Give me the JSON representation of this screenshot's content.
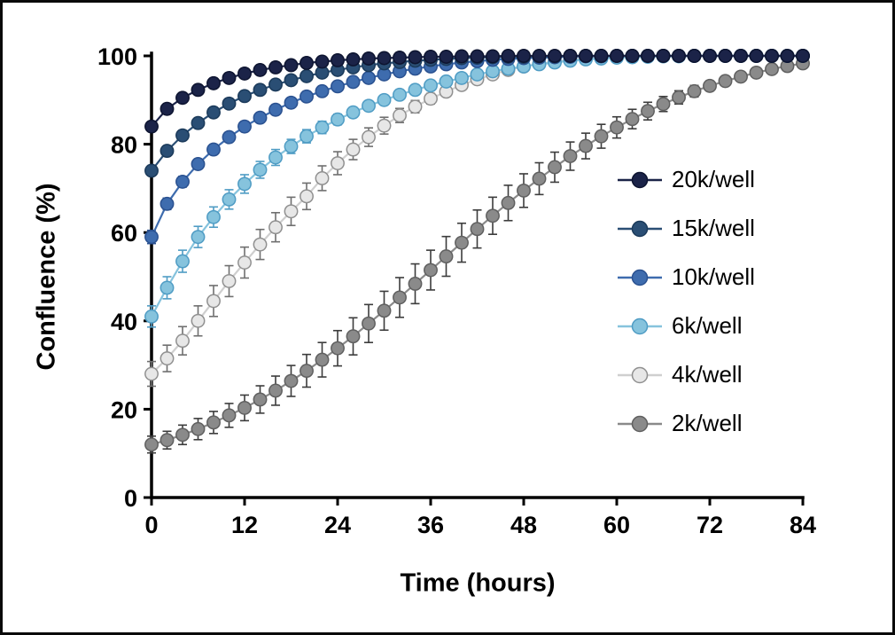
{
  "figure": {
    "background": "#ffffff",
    "border_color": "#0a0a0a"
  },
  "chart_data": {
    "type": "line",
    "title": "",
    "xlabel": "Time (hours)",
    "ylabel": "Confluence (%)",
    "xlim": [
      0,
      84
    ],
    "ylim": [
      0,
      100
    ],
    "x_ticks": [
      0,
      12,
      24,
      36,
      48,
      60,
      72,
      84
    ],
    "y_ticks": [
      0,
      20,
      40,
      60,
      80,
      100
    ],
    "grid": false,
    "legend_position": "inside-right",
    "marker_shape": "circle",
    "x_step_hours": 2,
    "x": [
      0,
      2,
      4,
      6,
      8,
      10,
      12,
      14,
      16,
      18,
      20,
      22,
      24,
      26,
      28,
      30,
      32,
      34,
      36,
      38,
      40,
      42,
      44,
      46,
      48,
      50,
      52,
      54,
      56,
      58,
      60,
      62,
      64,
      66,
      68,
      70,
      72,
      74,
      76,
      78,
      80,
      82,
      84
    ],
    "series": [
      {
        "name": "20k/well",
        "color": "#1b2348",
        "marker_fill": "#1b2348",
        "marker_edge": "#0d1430",
        "error_color": "#0d1430",
        "values": [
          84,
          88,
          90.5,
          92.3,
          93.8,
          95,
          96,
          96.8,
          97.4,
          97.9,
          98.4,
          98.7,
          99,
          99.2,
          99.4,
          99.5,
          99.6,
          99.7,
          99.8,
          99.8,
          99.9,
          99.9,
          99.9,
          100,
          100,
          100,
          100,
          100,
          100,
          100,
          100,
          100,
          100,
          100,
          100,
          100,
          100,
          100,
          100,
          100,
          100,
          100,
          100
        ],
        "errors": [
          0.4,
          0.3,
          0.3,
          0.2,
          0.2,
          0.2,
          0.1,
          0.1,
          0.1,
          0.1,
          0.1,
          0,
          0,
          0,
          0,
          0,
          0,
          0,
          0,
          0,
          0,
          0,
          0,
          0,
          0,
          0,
          0,
          0,
          0,
          0,
          0,
          0,
          0,
          0,
          0,
          0,
          0,
          0,
          0,
          0,
          0,
          0,
          0
        ]
      },
      {
        "name": "15k/well",
        "color": "#2a4e74",
        "marker_fill": "#2a4e74",
        "marker_edge": "#1b3a5a",
        "error_color": "#1b3a5a",
        "values": [
          74,
          78.5,
          82,
          84.8,
          87.2,
          89.2,
          90.9,
          92.3,
          93.5,
          94.5,
          95.4,
          96.2,
          96.8,
          97.4,
          97.9,
          98.3,
          98.6,
          98.9,
          99.1,
          99.3,
          99.5,
          99.6,
          99.7,
          99.8,
          99.8,
          99.9,
          99.9,
          100,
          100,
          100,
          100,
          100,
          100,
          100,
          100,
          100,
          100,
          100,
          100,
          100,
          100,
          100,
          100
        ],
        "errors": [
          0.9,
          0.8,
          0.7,
          0.6,
          0.5,
          0.5,
          0.4,
          0.3,
          0.3,
          0.2,
          0.2,
          0.2,
          0.1,
          0.1,
          0.1,
          0.1,
          0.1,
          0.1,
          0,
          0,
          0,
          0,
          0,
          0,
          0,
          0,
          0,
          0,
          0,
          0,
          0,
          0,
          0,
          0,
          0,
          0,
          0,
          0,
          0,
          0,
          0,
          0,
          0
        ]
      },
      {
        "name": "10k/well",
        "color": "#3e6cae",
        "marker_fill": "#3e6cae",
        "marker_edge": "#2a5190",
        "error_color": "#2a5190",
        "values": [
          59,
          66.5,
          71.5,
          75.5,
          78.8,
          81.6,
          84,
          86,
          87.8,
          89.4,
          90.8,
          92,
          93.1,
          94.1,
          95,
          95.8,
          96.5,
          97.1,
          97.6,
          98.1,
          98.5,
          98.8,
          99.1,
          99.3,
          99.5,
          99.6,
          99.7,
          99.8,
          99.9,
          99.9,
          100,
          100,
          100,
          100,
          100,
          100,
          100,
          100,
          100,
          100,
          100,
          100,
          100
        ],
        "errors": [
          1.5,
          1.3,
          1.2,
          1.1,
          1.0,
          0.9,
          0.8,
          0.7,
          0.6,
          0.6,
          0.5,
          0.4,
          0.4,
          0.3,
          0.3,
          0.2,
          0.2,
          0.2,
          0.1,
          0.1,
          0.1,
          0.1,
          0.1,
          0,
          0,
          0,
          0,
          0,
          0,
          0,
          0,
          0,
          0,
          0,
          0,
          0,
          0,
          0,
          0,
          0,
          0,
          0,
          0
        ]
      },
      {
        "name": "6k/well",
        "color": "#86c3dd",
        "marker_fill": "#86c3dd",
        "marker_edge": "#4f9cc4",
        "error_color": "#4f9cc4",
        "values": [
          41,
          47.5,
          53.5,
          59,
          63.5,
          67.5,
          71,
          74.2,
          77,
          79.5,
          81.8,
          83.8,
          85.6,
          87.2,
          88.7,
          90,
          91.2,
          92.3,
          93.3,
          94.2,
          95,
          95.8,
          96.5,
          97.1,
          97.6,
          98.1,
          98.5,
          98.9,
          99.2,
          99.4,
          99.6,
          99.7,
          99.8,
          99.9,
          99.9,
          100,
          100,
          100,
          100,
          100,
          100,
          100,
          100
        ],
        "errors": [
          2.4,
          2.5,
          2.5,
          2.4,
          2.3,
          2.2,
          2.1,
          1.9,
          1.8,
          1.6,
          1.5,
          1.4,
          1.2,
          1.1,
          1.0,
          0.9,
          0.8,
          0.7,
          0.6,
          0.6,
          0.5,
          0.4,
          0.3,
          0.3,
          0.2,
          0.2,
          0.2,
          0.1,
          0.1,
          0.1,
          0,
          0,
          0,
          0,
          0,
          0,
          0,
          0,
          0,
          0,
          0,
          0,
          0
        ]
      },
      {
        "name": "4k/well",
        "color": "#cfcfcf",
        "marker_fill": "#e7e7e7",
        "marker_edge": "#909090",
        "error_color": "#6f6f6f",
        "values": [
          28,
          31.5,
          35.5,
          40,
          44.5,
          49,
          53.2,
          57.3,
          61.2,
          64.8,
          68.2,
          72.3,
          75.7,
          78.8,
          81.6,
          84.2,
          86.5,
          88.5,
          90.3,
          91.9,
          93.4,
          94.7,
          95.8,
          96.8,
          97.6,
          98.2,
          98.7,
          99.1,
          99.4,
          99.6,
          99.7,
          99.8,
          99.9,
          99.9,
          100,
          100,
          100,
          100,
          100,
          100,
          100,
          100,
          100
        ],
        "errors": [
          2.8,
          3.0,
          3.2,
          3.4,
          3.5,
          3.5,
          3.5,
          3.4,
          3.3,
          3.2,
          3.0,
          2.8,
          2.6,
          2.3,
          2.1,
          1.9,
          1.6,
          1.4,
          1.2,
          1.0,
          0.9,
          0.7,
          0.6,
          0.4,
          0.3,
          0.2,
          0.2,
          0.1,
          0.1,
          0.1,
          0,
          0,
          0,
          0,
          0,
          0,
          0,
          0,
          0,
          0,
          0,
          0,
          0
        ]
      },
      {
        "name": "2k/well",
        "color": "#8a8a8a",
        "marker_fill": "#8a8a8a",
        "marker_edge": "#606060",
        "error_color": "#3c3c3c",
        "values": [
          12,
          13,
          14.2,
          15.5,
          17,
          18.6,
          20.3,
          22.2,
          24.2,
          26.4,
          28.7,
          31.2,
          33.8,
          36.5,
          39.4,
          42.3,
          45.3,
          48.4,
          51.5,
          54.6,
          57.7,
          60.8,
          63.8,
          66.7,
          69.5,
          72.2,
          74.8,
          77.3,
          79.6,
          81.8,
          83.8,
          85.7,
          87.5,
          89.1,
          90.6,
          92,
          93.2,
          94.3,
          95.3,
          96.2,
          97,
          97.7,
          98.3
        ],
        "errors": [
          1.9,
          2.0,
          2.2,
          2.4,
          2.5,
          2.7,
          2.9,
          3.1,
          3.3,
          3.5,
          3.7,
          3.9,
          4.0,
          4.2,
          4.3,
          4.4,
          4.5,
          4.5,
          4.5,
          4.5,
          4.4,
          4.3,
          4.2,
          4.0,
          3.8,
          3.6,
          3.4,
          3.2,
          2.9,
          2.7,
          2.4,
          2.2,
          2.0,
          1.7,
          1.5,
          1.3,
          1.1,
          1.0,
          0.8,
          0.7,
          0.5,
          0.4,
          0.3
        ]
      }
    ]
  }
}
